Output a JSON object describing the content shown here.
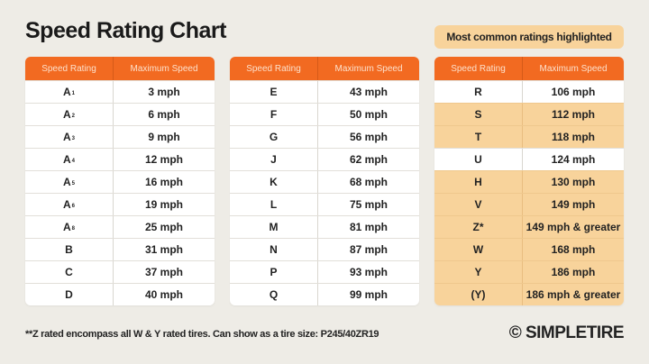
{
  "title": "Speed Rating Chart",
  "badge": "Most common ratings highlighted",
  "headers": {
    "rating": "Speed Rating",
    "speed": "Maximum Speed"
  },
  "highlight_color": "#f8d39b",
  "header_color": "#f26a21",
  "tables": [
    {
      "rows": [
        {
          "rating": "A",
          "sub": "1",
          "speed": "3 mph",
          "highlighted": false
        },
        {
          "rating": "A",
          "sub": "2",
          "speed": "6 mph",
          "highlighted": false
        },
        {
          "rating": "A",
          "sub": "3",
          "speed": "9 mph",
          "highlighted": false
        },
        {
          "rating": "A",
          "sub": "4",
          "speed": "12 mph",
          "highlighted": false
        },
        {
          "rating": "A",
          "sub": "5",
          "speed": "16 mph",
          "highlighted": false
        },
        {
          "rating": "A",
          "sub": "6",
          "speed": "19 mph",
          "highlighted": false
        },
        {
          "rating": "A",
          "sub": "8",
          "speed": "25 mph",
          "highlighted": false
        },
        {
          "rating": "B",
          "sub": "",
          "speed": "31 mph",
          "highlighted": false
        },
        {
          "rating": "C",
          "sub": "",
          "speed": "37 mph",
          "highlighted": false
        },
        {
          "rating": "D",
          "sub": "",
          "speed": "40 mph",
          "highlighted": false
        }
      ]
    },
    {
      "rows": [
        {
          "rating": "E",
          "sub": "",
          "speed": "43 mph",
          "highlighted": false
        },
        {
          "rating": "F",
          "sub": "",
          "speed": "50 mph",
          "highlighted": false
        },
        {
          "rating": "G",
          "sub": "",
          "speed": "56 mph",
          "highlighted": false
        },
        {
          "rating": "J",
          "sub": "",
          "speed": "62 mph",
          "highlighted": false
        },
        {
          "rating": "K",
          "sub": "",
          "speed": "68 mph",
          "highlighted": false
        },
        {
          "rating": "L",
          "sub": "",
          "speed": "75 mph",
          "highlighted": false
        },
        {
          "rating": "M",
          "sub": "",
          "speed": "81 mph",
          "highlighted": false
        },
        {
          "rating": "N",
          "sub": "",
          "speed": "87 mph",
          "highlighted": false
        },
        {
          "rating": "P",
          "sub": "",
          "speed": "93 mph",
          "highlighted": false
        },
        {
          "rating": "Q",
          "sub": "",
          "speed": "99 mph",
          "highlighted": false
        }
      ]
    },
    {
      "rows": [
        {
          "rating": "R",
          "sub": "",
          "speed": "106 mph",
          "highlighted": false
        },
        {
          "rating": "S",
          "sub": "",
          "speed": "112 mph",
          "highlighted": true
        },
        {
          "rating": "T",
          "sub": "",
          "speed": "118 mph",
          "highlighted": true
        },
        {
          "rating": "U",
          "sub": "",
          "speed": "124 mph",
          "highlighted": false
        },
        {
          "rating": "H",
          "sub": "",
          "speed": "130 mph",
          "highlighted": true
        },
        {
          "rating": "V",
          "sub": "",
          "speed": "149 mph",
          "highlighted": true
        },
        {
          "rating": "Z*",
          "sub": "",
          "speed": "149 mph & greater",
          "highlighted": true
        },
        {
          "rating": "W",
          "sub": "",
          "speed": "168 mph",
          "highlighted": true
        },
        {
          "rating": "Y",
          "sub": "",
          "speed": "186 mph",
          "highlighted": true
        },
        {
          "rating": "(Y)",
          "sub": "",
          "speed": "186 mph & greater",
          "highlighted": true
        }
      ]
    }
  ],
  "footnote": "**Z rated encompass all W & Y rated tires.  Can show as a tire size: P245/40ZR19",
  "logo": "© SIMPLETIRE"
}
